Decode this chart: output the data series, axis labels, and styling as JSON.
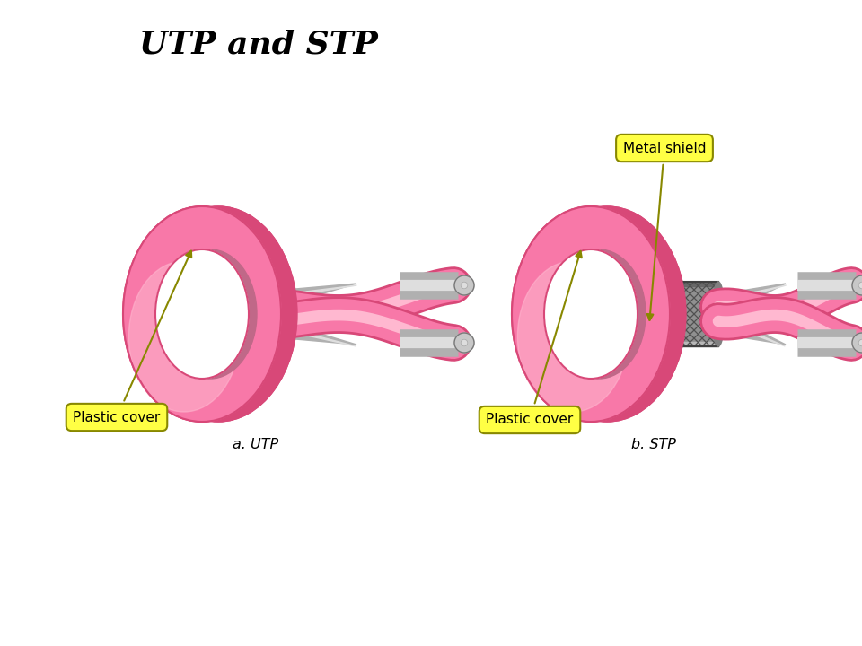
{
  "title": "UTP and STP",
  "title_fontsize": 26,
  "title_style": "italic",
  "title_weight": "bold",
  "background_color": "#ffffff",
  "label_utp": "a. UTP",
  "label_stp": "b. STP",
  "label_plastic": "Plastic cover",
  "label_metal": "Metal shield",
  "pink_main": "#F878A8",
  "pink_light": "#FFB8D0",
  "pink_dark": "#D84878",
  "pink_mid": "#EE80A8",
  "gray_main": "#B0B0B0",
  "gray_light": "#DEDEDE",
  "gray_dark": "#787878",
  "gray_mid": "#C8C8C8",
  "yellow_bg": "#FFFF44",
  "yellow_border": "#AAAA00"
}
